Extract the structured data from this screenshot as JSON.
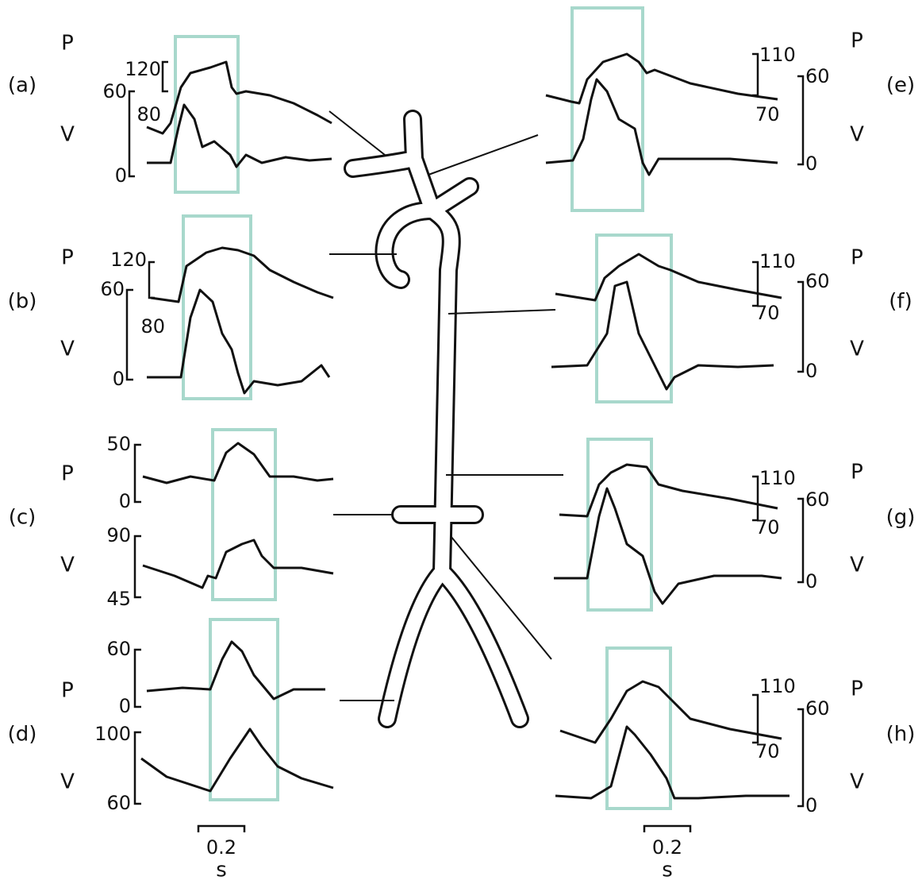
{
  "panels": [
    {
      "label": "(a)",
      "p": "P",
      "v": "V",
      "scale": [
        "120",
        "60",
        "80",
        "0"
      ]
    },
    {
      "label": "(b)",
      "p": "P",
      "v": "V",
      "scale": [
        "120",
        "60",
        "80",
        "0"
      ]
    },
    {
      "label": "(c)",
      "p": "P",
      "v": "V",
      "scale": [
        "50",
        "0",
        "90",
        "45"
      ]
    },
    {
      "label": "(d)",
      "p": "P",
      "v": "V",
      "scale": [
        "60",
        "0",
        "100",
        "60"
      ]
    },
    {
      "label": "(e)",
      "p": "P",
      "v": "V",
      "scale": [
        "110",
        "60",
        "70",
        "0"
      ]
    },
    {
      "label": "(f)",
      "p": "P",
      "v": "V",
      "scale": [
        "110",
        "60",
        "70",
        "0"
      ]
    },
    {
      "label": "(g)",
      "p": "P",
      "v": "V",
      "scale": [
        "110",
        "60",
        "70",
        "0"
      ]
    },
    {
      "label": "(h)",
      "p": "P",
      "v": "V",
      "scale": [
        "110",
        "60",
        "70",
        "0"
      ]
    }
  ],
  "time_bars": [
    {
      "value": "0.2",
      "unit": "s"
    },
    {
      "value": "0.2",
      "unit": "s"
    }
  ]
}
